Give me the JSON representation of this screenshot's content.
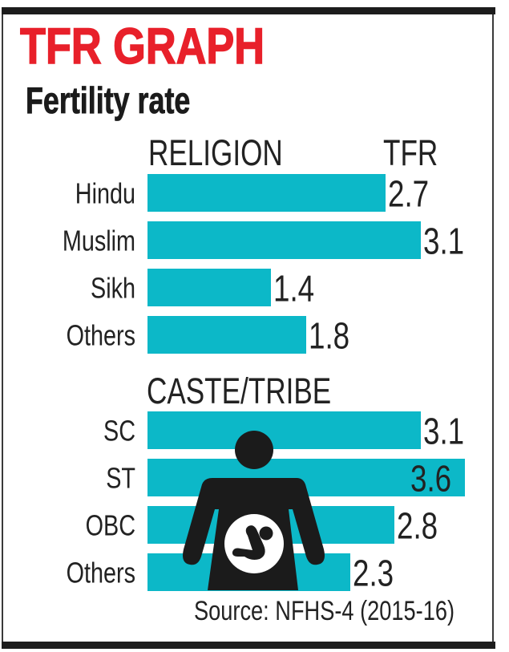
{
  "header": {
    "title": "TFR GRAPH",
    "subtitle": "Fertility rate",
    "title_color": "#e8202a"
  },
  "columns": {
    "category_head": "RELIGION",
    "value_head": "TFR"
  },
  "footer": {
    "source": "Source: NFHS-4 (2015-16)"
  },
  "icon": {
    "name": "pregnant-woman-icon",
    "color": "#1b1b1b"
  },
  "chart_data": {
    "type": "bar",
    "orientation": "horizontal",
    "title": "TFR GRAPH",
    "subtitle": "Fertility rate",
    "xlabel": "",
    "ylabel": "",
    "value_label": "TFR",
    "bar_color": "#0cb8c8",
    "grid": false,
    "xlim": [
      0,
      4
    ],
    "groups": [
      {
        "name": "RELIGION",
        "categories": [
          "Hindu",
          "Muslim",
          "Sikh",
          "Others"
        ],
        "values": [
          2.7,
          3.1,
          1.4,
          1.8
        ],
        "labels": [
          "2.7",
          "3.1",
          "1.4",
          "1.8"
        ]
      },
      {
        "name": "CASTE/TRIBE",
        "categories": [
          "SC",
          "ST",
          "OBC",
          "Others"
        ],
        "values": [
          3.1,
          3.6,
          2.8,
          2.3
        ],
        "labels": [
          "3.1",
          "3.6",
          "2.8",
          "2.3"
        ]
      }
    ],
    "source": "Source: NFHS-4 (2015-16)"
  }
}
